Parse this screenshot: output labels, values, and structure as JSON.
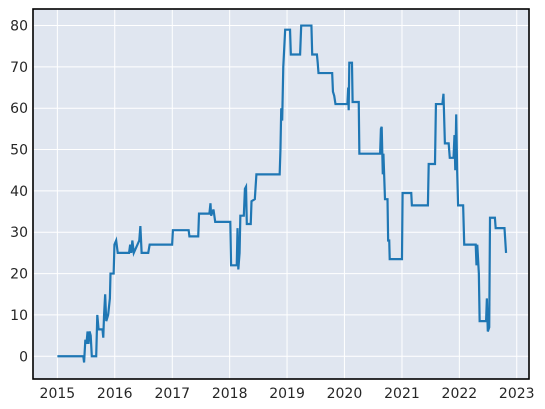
{
  "chart_data": {
    "type": "line",
    "title": "",
    "xlabel": "",
    "ylabel": "",
    "x_ticks": [
      "2015",
      "2016",
      "2017",
      "2018",
      "2019",
      "2020",
      "2021",
      "2022",
      "2023"
    ],
    "y_ticks": [
      "0",
      "10",
      "20",
      "30",
      "40",
      "50",
      "60",
      "70",
      "80"
    ],
    "xlim": [
      "2014-07-30",
      "2023-03-20"
    ],
    "ylim": [
      -5.5,
      84
    ],
    "grid": true,
    "legend": "none",
    "series": [
      {
        "color": "#1f77b4",
        "points": [
          [
            "2015-01-01",
            0
          ],
          [
            "2015-06-15",
            0
          ],
          [
            "2015-06-20",
            -1.5
          ],
          [
            "2015-06-28",
            4
          ],
          [
            "2015-07-05",
            3
          ],
          [
            "2015-07-12",
            6
          ],
          [
            "2015-07-18",
            3
          ],
          [
            "2015-07-25",
            6
          ],
          [
            "2015-08-01",
            5
          ],
          [
            "2015-08-08",
            0
          ],
          [
            "2015-09-05",
            0
          ],
          [
            "2015-09-12",
            10
          ],
          [
            "2015-09-20",
            6.5
          ],
          [
            "2015-10-15",
            6.5
          ],
          [
            "2015-10-20",
            4.5
          ],
          [
            "2015-10-25",
            10
          ],
          [
            "2015-11-01",
            15
          ],
          [
            "2015-11-08",
            8.5
          ],
          [
            "2015-11-20",
            10
          ],
          [
            "2015-12-01",
            14
          ],
          [
            "2015-12-05",
            20
          ],
          [
            "2015-12-25",
            20
          ],
          [
            "2015-12-30",
            27
          ],
          [
            "2016-01-10",
            28
          ],
          [
            "2016-01-20",
            25
          ],
          [
            "2016-04-01",
            25
          ],
          [
            "2016-04-08",
            27
          ],
          [
            "2016-04-15",
            25
          ],
          [
            "2016-04-22",
            28
          ],
          [
            "2016-05-01",
            25
          ],
          [
            "2016-06-05",
            28
          ],
          [
            "2016-06-12",
            31.5
          ],
          [
            "2016-06-20",
            25
          ],
          [
            "2016-08-01",
            25
          ],
          [
            "2016-08-10",
            27
          ],
          [
            "2016-12-31",
            27
          ],
          [
            "2017-01-05",
            30.5
          ],
          [
            "2017-04-15",
            30.5
          ],
          [
            "2017-04-20",
            29
          ],
          [
            "2017-06-15",
            29
          ],
          [
            "2017-06-20",
            34.5
          ],
          [
            "2017-08-25",
            34.5
          ],
          [
            "2017-09-01",
            37
          ],
          [
            "2017-09-05",
            34
          ],
          [
            "2017-09-20",
            35.5
          ],
          [
            "2017-10-01",
            32.5
          ],
          [
            "2018-01-05",
            32.5
          ],
          [
            "2018-01-10",
            22
          ],
          [
            "2018-02-15",
            22
          ],
          [
            "2018-02-20",
            31
          ],
          [
            "2018-02-25",
            21
          ],
          [
            "2018-03-05",
            25
          ],
          [
            "2018-03-10",
            34
          ],
          [
            "2018-04-01",
            34
          ],
          [
            "2018-04-08",
            40.5
          ],
          [
            "2018-04-15",
            41
          ],
          [
            "2018-04-20",
            32
          ],
          [
            "2018-05-15",
            32
          ],
          [
            "2018-05-20",
            37.5
          ],
          [
            "2018-06-10",
            38
          ],
          [
            "2018-06-20",
            44
          ],
          [
            "2018-11-15",
            44
          ],
          [
            "2018-11-20",
            50
          ],
          [
            "2018-11-25",
            60
          ],
          [
            "2018-12-01",
            57
          ],
          [
            "2018-12-08",
            70
          ],
          [
            "2018-12-20",
            79
          ],
          [
            "2019-01-20",
            79
          ],
          [
            "2019-01-25",
            73
          ],
          [
            "2019-03-25",
            73
          ],
          [
            "2019-04-01",
            80
          ],
          [
            "2019-06-05",
            80
          ],
          [
            "2019-06-10",
            73
          ],
          [
            "2019-07-10",
            73
          ],
          [
            "2019-07-15",
            71
          ],
          [
            "2019-07-20",
            68.5
          ],
          [
            "2019-10-15",
            68.5
          ],
          [
            "2019-10-20",
            64
          ],
          [
            "2019-10-28",
            63
          ],
          [
            "2019-11-05",
            61
          ],
          [
            "2020-01-20",
            61
          ],
          [
            "2020-01-25",
            65
          ],
          [
            "2020-01-28",
            59.5
          ],
          [
            "2020-02-01",
            71
          ],
          [
            "2020-02-18",
            71
          ],
          [
            "2020-02-22",
            61.5
          ],
          [
            "2020-04-01",
            61.5
          ],
          [
            "2020-04-05",
            49
          ],
          [
            "2020-08-15",
            49
          ],
          [
            "2020-08-20",
            55
          ],
          [
            "2020-08-25",
            55.5
          ],
          [
            "2020-09-01",
            44
          ],
          [
            "2020-09-05",
            49
          ],
          [
            "2020-09-15",
            38
          ],
          [
            "2020-10-01",
            38
          ],
          [
            "2020-10-05",
            28
          ],
          [
            "2020-10-12",
            28
          ],
          [
            "2020-10-15",
            23.5
          ],
          [
            "2021-01-01",
            23.5
          ],
          [
            "2021-01-05",
            39.5
          ],
          [
            "2021-03-01",
            39.5
          ],
          [
            "2021-03-05",
            36.5
          ],
          [
            "2021-06-15",
            36.5
          ],
          [
            "2021-06-20",
            46.5
          ],
          [
            "2021-07-30",
            46.5
          ],
          [
            "2021-08-05",
            61
          ],
          [
            "2021-09-15",
            61
          ],
          [
            "2021-09-22",
            63.5
          ],
          [
            "2021-10-01",
            51.5
          ],
          [
            "2021-10-25",
            51.5
          ],
          [
            "2021-11-01",
            48
          ],
          [
            "2021-11-25",
            48
          ],
          [
            "2021-12-01",
            53.5
          ],
          [
            "2021-12-06",
            45
          ],
          [
            "2021-12-12",
            58.5
          ],
          [
            "2021-12-18",
            45
          ],
          [
            "2021-12-24",
            36.5
          ],
          [
            "2022-01-25",
            36.5
          ],
          [
            "2022-02-01",
            27
          ],
          [
            "2022-04-15",
            27
          ],
          [
            "2022-04-20",
            22
          ],
          [
            "2022-04-25",
            27
          ],
          [
            "2022-05-05",
            20
          ],
          [
            "2022-05-10",
            8.5
          ],
          [
            "2022-06-20",
            8.5
          ],
          [
            "2022-06-25",
            14
          ],
          [
            "2022-07-01",
            6
          ],
          [
            "2022-07-10",
            7
          ],
          [
            "2022-07-15",
            33.5
          ],
          [
            "2022-08-15",
            33.5
          ],
          [
            "2022-08-20",
            31
          ],
          [
            "2022-10-15",
            31
          ],
          [
            "2022-10-25",
            25
          ]
        ]
      }
    ]
  }
}
